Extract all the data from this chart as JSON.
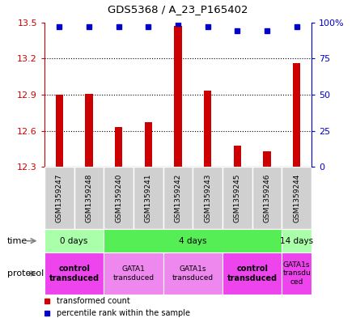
{
  "title": "GDS5368 / A_23_P165402",
  "samples": [
    "GSM1359247",
    "GSM1359248",
    "GSM1359240",
    "GSM1359241",
    "GSM1359242",
    "GSM1359243",
    "GSM1359245",
    "GSM1359246",
    "GSM1359244"
  ],
  "transformed_counts": [
    12.9,
    12.905,
    12.63,
    12.67,
    13.47,
    12.935,
    12.48,
    12.43,
    13.16
  ],
  "percentile_ranks": [
    97,
    97,
    97,
    97,
    99,
    97,
    94,
    94,
    97
  ],
  "ylim_left": [
    12.3,
    13.5
  ],
  "ylim_right": [
    0,
    100
  ],
  "left_ticks": [
    12.3,
    12.6,
    12.9,
    13.2,
    13.5
  ],
  "right_ticks": [
    0,
    25,
    50,
    75,
    100
  ],
  "bar_color": "#cc0000",
  "dot_color": "#0000cc",
  "time_groups": [
    {
      "label": "0 days",
      "start": 0,
      "end": 2,
      "color": "#aaffaa"
    },
    {
      "label": "4 days",
      "start": 2,
      "end": 8,
      "color": "#55ee55"
    },
    {
      "label": "14 days",
      "start": 8,
      "end": 9,
      "color": "#aaffaa"
    }
  ],
  "protocol_groups": [
    {
      "label": "control\ntransduced",
      "start": 0,
      "end": 2,
      "color": "#ee44ee",
      "bold": true
    },
    {
      "label": "GATA1\ntransduced",
      "start": 2,
      "end": 4,
      "color": "#ee88ee",
      "bold": false
    },
    {
      "label": "GATA1s\ntransduced",
      "start": 4,
      "end": 6,
      "color": "#ee88ee",
      "bold": false
    },
    {
      "label": "control\ntransduced",
      "start": 6,
      "end": 8,
      "color": "#ee44ee",
      "bold": true
    },
    {
      "label": "GATA1s\ntransdu\nced",
      "start": 8,
      "end": 9,
      "color": "#ee44ee",
      "bold": false
    }
  ],
  "legend_items": [
    {
      "color": "#cc0000",
      "label": "transformed count"
    },
    {
      "color": "#0000cc",
      "label": "percentile rank within the sample"
    }
  ],
  "fig_width": 4.4,
  "fig_height": 3.93,
  "dpi": 100
}
